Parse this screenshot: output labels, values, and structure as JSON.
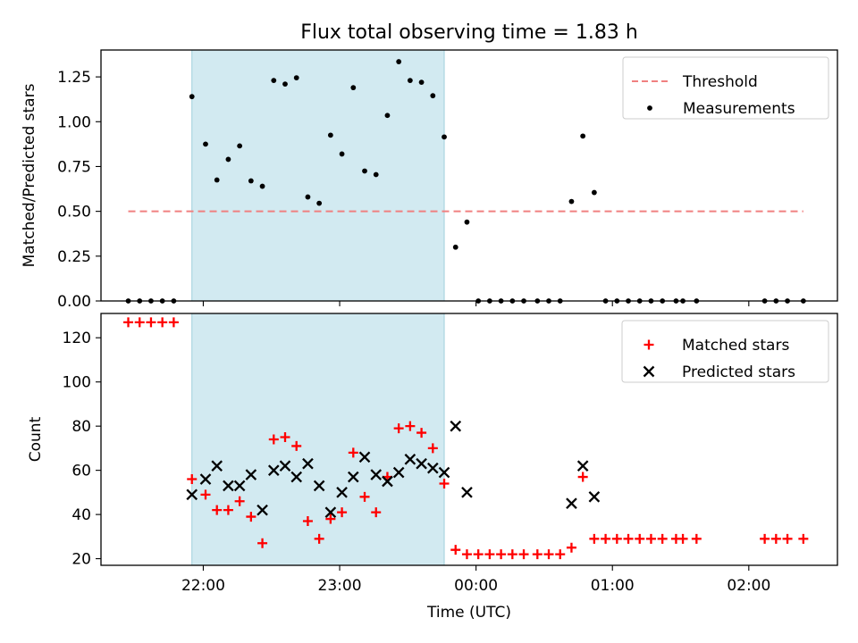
{
  "chart_data": [
    {
      "type": "scatter",
      "title": "Flux total observing time = 1.83 h",
      "ylabel": "Matched/Predicted stars",
      "xlabel": "",
      "ylim": [
        0,
        1.4
      ],
      "yticks": [
        "0.00",
        "0.25",
        "0.50",
        "0.75",
        "1.00",
        "1.25"
      ],
      "highlight_span": [
        "21:55",
        "23:46"
      ],
      "grid": false,
      "legend": {
        "placement": "top-right",
        "entries": [
          "Threshold",
          "Measurements"
        ]
      },
      "threshold": {
        "name": "Threshold",
        "value": 0.5,
        "x": [
          "21:27",
          "02:24"
        ],
        "color": "#f08080",
        "style": "dashed"
      },
      "series": [
        {
          "name": "Measurements",
          "color": "#000000",
          "marker": "dot",
          "points": [
            [
              "21:27",
              0
            ],
            [
              "21:32",
              0
            ],
            [
              "21:37",
              0
            ],
            [
              "21:42",
              0
            ],
            [
              "21:47",
              0
            ],
            [
              "21:55",
              1.14
            ],
            [
              "22:01",
              0.875
            ],
            [
              "22:06",
              0.675
            ],
            [
              "22:11",
              0.79
            ],
            [
              "22:16",
              0.865
            ],
            [
              "22:21",
              0.67
            ],
            [
              "22:26",
              0.64
            ],
            [
              "22:31",
              1.23
            ],
            [
              "22:36",
              1.21
            ],
            [
              "22:41",
              1.245
            ],
            [
              "22:46",
              0.58
            ],
            [
              "22:51",
              0.545
            ],
            [
              "22:56",
              0.925
            ],
            [
              "23:01",
              0.82
            ],
            [
              "23:06",
              1.19
            ],
            [
              "23:11",
              0.725
            ],
            [
              "23:16",
              0.705
            ],
            [
              "23:21",
              1.035
            ],
            [
              "23:26",
              1.335
            ],
            [
              "23:31",
              1.23
            ],
            [
              "23:36",
              1.22
            ],
            [
              "23:41",
              1.145
            ],
            [
              "23:46",
              0.915
            ],
            [
              "23:51",
              0.3
            ],
            [
              "23:56",
              0.44
            ],
            [
              "00:01",
              0
            ],
            [
              "00:06",
              0
            ],
            [
              "00:11",
              0
            ],
            [
              "00:16",
              0
            ],
            [
              "00:21",
              0
            ],
            [
              "00:27",
              0
            ],
            [
              "00:32",
              0
            ],
            [
              "00:37",
              0
            ],
            [
              "00:42",
              0.555
            ],
            [
              "00:47",
              0.92
            ],
            [
              "00:52",
              0.605
            ],
            [
              "00:57",
              0
            ],
            [
              "01:02",
              0
            ],
            [
              "01:07",
              0
            ],
            [
              "01:12",
              0
            ],
            [
              "01:17",
              0
            ],
            [
              "01:22",
              0
            ],
            [
              "01:28",
              0
            ],
            [
              "01:31",
              0
            ],
            [
              "01:37",
              0
            ],
            [
              "02:07",
              0
            ],
            [
              "02:12",
              0
            ],
            [
              "02:17",
              0
            ],
            [
              "02:24",
              0
            ]
          ]
        }
      ]
    },
    {
      "type": "scatter",
      "title": "",
      "xlabel": "Time (UTC)",
      "ylabel": "Count",
      "ylim": [
        17,
        131
      ],
      "yticks": [
        "20",
        "40",
        "60",
        "80",
        "100",
        "120"
      ],
      "xticks": [
        "22:00",
        "23:00",
        "00:00",
        "01:00",
        "02:00"
      ],
      "highlight_span": [
        "21:55",
        "23:46"
      ],
      "grid": false,
      "legend": {
        "placement": "top-right",
        "entries": [
          "Matched stars",
          "Predicted stars"
        ]
      },
      "series": [
        {
          "name": "Matched stars",
          "color": "#ff0000",
          "marker": "plus",
          "points": [
            [
              "21:27",
              127
            ],
            [
              "21:32",
              127
            ],
            [
              "21:37",
              127
            ],
            [
              "21:42",
              127
            ],
            [
              "21:47",
              127
            ],
            [
              "21:55",
              56
            ],
            [
              "22:01",
              49
            ],
            [
              "22:06",
              42
            ],
            [
              "22:11",
              42
            ],
            [
              "22:16",
              46
            ],
            [
              "22:21",
              39
            ],
            [
              "22:26",
              27
            ],
            [
              "22:31",
              74
            ],
            [
              "22:36",
              75
            ],
            [
              "22:41",
              71
            ],
            [
              "22:46",
              37
            ],
            [
              "22:51",
              29
            ],
            [
              "22:56",
              38
            ],
            [
              "23:01",
              41
            ],
            [
              "23:06",
              68
            ],
            [
              "23:11",
              48
            ],
            [
              "23:16",
              41
            ],
            [
              "23:21",
              57
            ],
            [
              "23:26",
              79
            ],
            [
              "23:31",
              80
            ],
            [
              "23:36",
              77
            ],
            [
              "23:41",
              70
            ],
            [
              "23:46",
              54
            ],
            [
              "23:51",
              24
            ],
            [
              "23:56",
              22
            ],
            [
              "00:01",
              22
            ],
            [
              "00:06",
              22
            ],
            [
              "00:11",
              22
            ],
            [
              "00:16",
              22
            ],
            [
              "00:21",
              22
            ],
            [
              "00:27",
              22
            ],
            [
              "00:32",
              22
            ],
            [
              "00:37",
              22
            ],
            [
              "00:42",
              25
            ],
            [
              "00:47",
              57
            ],
            [
              "00:52",
              29
            ],
            [
              "00:57",
              29
            ],
            [
              "01:02",
              29
            ],
            [
              "01:07",
              29
            ],
            [
              "01:12",
              29
            ],
            [
              "01:17",
              29
            ],
            [
              "01:22",
              29
            ],
            [
              "01:28",
              29
            ],
            [
              "01:31",
              29
            ],
            [
              "01:37",
              29
            ],
            [
              "02:07",
              29
            ],
            [
              "02:12",
              29
            ],
            [
              "02:17",
              29
            ],
            [
              "02:24",
              29
            ]
          ]
        },
        {
          "name": "Predicted stars",
          "color": "#000000",
          "marker": "x",
          "points": [
            [
              "21:55",
              49
            ],
            [
              "22:01",
              56
            ],
            [
              "22:06",
              62
            ],
            [
              "22:11",
              53
            ],
            [
              "22:16",
              53
            ],
            [
              "22:21",
              58
            ],
            [
              "22:26",
              42
            ],
            [
              "22:31",
              60
            ],
            [
              "22:36",
              62
            ],
            [
              "22:41",
              57
            ],
            [
              "22:46",
              63
            ],
            [
              "22:51",
              53
            ],
            [
              "22:56",
              41
            ],
            [
              "23:01",
              50
            ],
            [
              "23:06",
              57
            ],
            [
              "23:11",
              66
            ],
            [
              "23:16",
              58
            ],
            [
              "23:21",
              55
            ],
            [
              "23:26",
              59
            ],
            [
              "23:31",
              65
            ],
            [
              "23:36",
              63
            ],
            [
              "23:41",
              61
            ],
            [
              "23:46",
              59
            ],
            [
              "23:51",
              80
            ],
            [
              "23:56",
              50
            ],
            [
              "00:42",
              45
            ],
            [
              "00:47",
              62
            ],
            [
              "00:52",
              48
            ]
          ]
        }
      ]
    }
  ]
}
